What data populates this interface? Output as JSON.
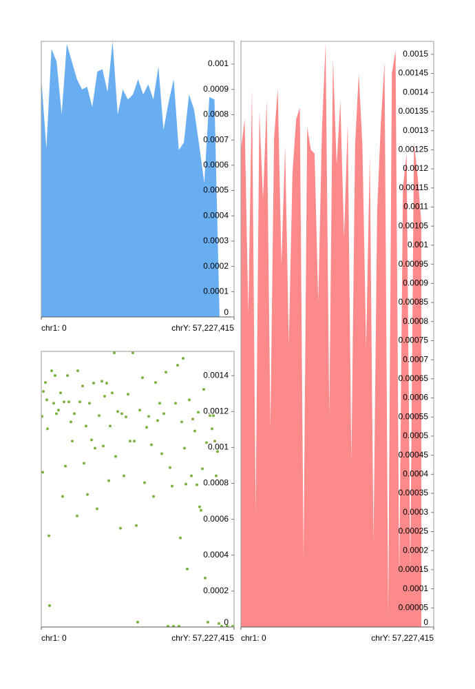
{
  "chart_data": [
    {
      "type": "area",
      "color": "#6aaef2",
      "x": [
        0,
        1512000,
        3024000,
        4536000,
        6048000,
        7560000,
        9072000,
        10584000,
        12096000,
        13608000,
        15120000,
        16632000,
        18144000,
        19656000,
        21168000,
        22680000,
        24192000,
        25704000,
        27216000,
        28728000,
        30240000,
        31752000,
        33264000,
        34776000,
        36288000,
        37800000,
        39312000,
        40824000,
        42336000,
        43848000,
        45360000,
        46872000,
        48384000,
        49896000,
        51408000,
        52920000
      ],
      "values": [
        0.000944,
        0.000667,
        0.00106,
        0.00101,
        0.0008,
        0.00108,
        0.00101,
        0.00094,
        0.0009,
        0.00091,
        0.00083,
        0.00097,
        0.00098,
        0.00089,
        0.00109,
        0.0008,
        0.0009,
        0.00086,
        0.00088,
        0.00094,
        0.00088,
        0.00092,
        0.00086,
        0.00099,
        0.00074,
        0.00085,
        0.00094,
        0.00066,
        0.00069,
        0.00088,
        0.00082,
        0.00068,
        0.00053,
        0.00087,
        0.00086,
        0
      ],
      "xlim": [
        0,
        57227415
      ],
      "xticks": [
        {
          "value": 0,
          "label": "chr1: 0"
        },
        {
          "value": 57227415,
          "label": "chrY: 57,227,415"
        }
      ],
      "ylim": [
        0,
        0.00109
      ],
      "yticks": [
        0,
        0.0001,
        0.0002,
        0.0003,
        0.0004,
        0.0005,
        0.0006,
        0.0007,
        0.0008,
        0.0009,
        0.001
      ]
    },
    {
      "type": "scatter",
      "color": "#7cb342",
      "x": [
        204000,
        409000,
        613000,
        1226000,
        1635000,
        1839000,
        2248000,
        2453000,
        3066000,
        3679000,
        4088000,
        4496000,
        5110000,
        5723000,
        6336000,
        6745000,
        7153000,
        7767000,
        8175000,
        8789000,
        9197000,
        9810000,
        10628000,
        10832000,
        11446000,
        12263000,
        12672000,
        13285000,
        13694000,
        14307000,
        14920000,
        15533000,
        15942000,
        16555000,
        17168000,
        17986000,
        18395000,
        18803000,
        19416000,
        20030000,
        20438000,
        21052000,
        21665000,
        22073000,
        22687000,
        23504000,
        23913000,
        24526000,
        25139000,
        25752000,
        26366000,
        27183000,
        27592000,
        28205000,
        28613000,
        29227000,
        30044000,
        30658000,
        31271000,
        31884000,
        32702000,
        33315000,
        33928000,
        34541000,
        35154000,
        35767000,
        36380000,
        36994000,
        37607000,
        38220000,
        38833000,
        39242000,
        39855000,
        40468000,
        40877000,
        41286000,
        41694000,
        42103000,
        42512000,
        42921000,
        43329000,
        43943000,
        44556000,
        44965000,
        45578000,
        46191000,
        46600000,
        47008000,
        47417000,
        47826000,
        48235000,
        48643000,
        49052000,
        49461000,
        50074000,
        50687000,
        51096000,
        51505000,
        51913000,
        52322000,
        52731000,
        53548000,
        55183000,
        56818000
      ],
      "values": [
        0.001173,
        0.000862,
        0.001312,
        0.001362,
        0.001265,
        0.001104,
        0.000508,
        0.000119,
        0.001427,
        0.001246,
        0.0014,
        0.001188,
        0.001208,
        0.001304,
        0.000727,
        0.001254,
        0.000896,
        0.0014,
        0.001254,
        0.001142,
        0.001035,
        0.001188,
        0.000619,
        0.001427,
        0.001254,
        0.001342,
        0.000912,
        0.001119,
        0.000738,
        0.001246,
        0.001042,
        0.001358,
        0.000996,
        0.000658,
        0.001177,
        0.001369,
        0.001008,
        0.001285,
        0.001358,
        0.000815,
        0.001119,
        0.001304,
        0.001527,
        0.00095,
        0.0012,
        0.00055,
        0.001188,
        0.000842,
        0.00117,
        0.001296,
        0.001035,
        0.001527,
        0.001035,
        0.000565,
        2.7e-05,
        0.001208,
        0.001388,
        0.000804,
        0.001112,
        0.001173,
        0.001015,
        0.000727,
        0.001362,
        0.00115,
        0.001246,
        0.000965,
        0.001188,
        0.001419,
        4e-06,
        0.000888,
        0.000785,
        4e-06,
        0.001246,
        0.001458,
        4e-06,
        0.000496,
        0.001142,
        0.001496,
        0.000996,
        0.000796,
        0.000323,
        0.001265,
        0.000842,
        0.001158,
        0.001092,
        0.000792,
        0.001196,
        0.000669,
        0.00065,
        0.000881,
        0.001323,
        0.000273,
        0.001027,
        2.7e-05,
        0.001177,
        0.001104,
        0.001177,
        0.001035,
        0.000842,
        0.000977,
        1.9e-05,
        4e-06,
        4e-06,
        4e-06
      ],
      "xlim": [
        0,
        57227415
      ],
      "xticks": [
        {
          "value": 0,
          "label": "chr1: 0"
        },
        {
          "value": 57227415,
          "label": "chrY: 57,227,415"
        }
      ],
      "ylim": [
        0,
        0.001535
      ],
      "yticks": [
        0,
        0.0002,
        0.0004,
        0.0006,
        0.0008,
        0.001,
        0.0012,
        0.0014
      ]
    },
    {
      "type": "area",
      "color": "#fc8a8a",
      "x": [
        0,
        1093000,
        2186000,
        3279000,
        4372000,
        5465000,
        6558000,
        7651000,
        8744000,
        9837000,
        10930000,
        12023000,
        13116000,
        14209000,
        15302000,
        16395000,
        17488000,
        18581000,
        19674000,
        20767000,
        21860000,
        22953000,
        24046000,
        25139000,
        26232000,
        27325000,
        28418000,
        29511000,
        30604000,
        31697000,
        32790000,
        33883000,
        34976000,
        36069000,
        37162000,
        38255000,
        39348000,
        40441000,
        41534000,
        42627000,
        43720000,
        44813000,
        45906000,
        46999000,
        48092000,
        49185000,
        50278000,
        51371000,
        52464000,
        53557000
      ],
      "values": [
        0.00125,
        0.00133,
        0.00082,
        0.00141,
        0.0003,
        0.00135,
        0.00112,
        0.00138,
        0.00052,
        0.00128,
        0.00141,
        0.00095,
        0.00126,
        0.00074,
        0.00119,
        0.00133,
        0.00136,
        0.00018,
        0.00131,
        0.00125,
        0.00124,
        0.00085,
        0.0013,
        0.00153,
        0.00055,
        0.00149,
        0.00121,
        0.00138,
        0.00102,
        0.00132,
        0.00043,
        0.00126,
        0.00145,
        0.00126,
        0.00073,
        0.00124,
        0.00022,
        0.00109,
        0.00132,
        0.00148,
        3e-05,
        0.00145,
        0.00151,
        0.00013,
        0.00115,
        0.00124,
        0.00015,
        0.00127,
        0.00118,
        0.00106
      ],
      "xlim": [
        0,
        57227415
      ],
      "xticks": [
        {
          "value": 0,
          "label": "chr1: 0"
        },
        {
          "value": 57227415,
          "label": "chrY: 57,227,415"
        }
      ],
      "ylim": [
        0,
        0.001534
      ],
      "yticks": [
        0,
        5e-05,
        0.0001,
        0.00015,
        0.0002,
        0.00025,
        0.0003,
        0.00035,
        0.0004,
        0.00045,
        0.0005,
        0.00055,
        0.0006,
        0.00065,
        0.0007,
        0.00075,
        0.0008,
        0.00085,
        0.0009,
        0.00095,
        0.001,
        0.00105,
        0.0011,
        0.00115,
        0.0012,
        0.00125,
        0.0013,
        0.00135,
        0.0014,
        0.00145,
        0.0015
      ]
    }
  ]
}
